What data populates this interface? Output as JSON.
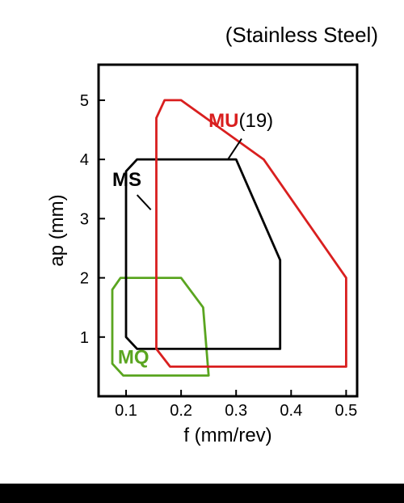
{
  "title": "(Stainless Steel)",
  "chart": {
    "type": "region-outline",
    "xlabel": "f (mm/rev)",
    "ylabel": "ap (mm)",
    "xlim": [
      0.05,
      0.52
    ],
    "ylim": [
      0,
      5.6
    ],
    "xticks": [
      0.1,
      0.2,
      0.3,
      0.4,
      0.5
    ],
    "yticks": [
      1,
      2,
      3,
      4,
      5
    ],
    "label_fontsize": 24,
    "tick_fontsize": 20,
    "background_color": "#ffffff",
    "frame_color": "#000000",
    "frame_linewidth": 3,
    "tick_length": 8,
    "series": [
      {
        "key": "MU",
        "label": "MU",
        "footnote": "(19)",
        "color": "#d91f1f",
        "linewidth": 2.8,
        "points": [
          [
            0.17,
            5.0
          ],
          [
            0.2,
            5.0
          ],
          [
            0.35,
            4.0
          ],
          [
            0.5,
            2.0
          ],
          [
            0.5,
            0.5
          ],
          [
            0.18,
            0.5
          ],
          [
            0.155,
            0.8
          ],
          [
            0.155,
            4.7
          ],
          [
            0.17,
            5.0
          ]
        ],
        "label_pos": [
          0.25,
          4.55
        ],
        "leader": {
          "from": [
            0.31,
            4.35
          ],
          "to": [
            0.285,
            4.0
          ]
        }
      },
      {
        "key": "MS",
        "label": "MS",
        "color": "#000000",
        "linewidth": 2.8,
        "points": [
          [
            0.12,
            4.0
          ],
          [
            0.3,
            4.0
          ],
          [
            0.38,
            2.3
          ],
          [
            0.38,
            0.8
          ],
          [
            0.12,
            0.8
          ],
          [
            0.1,
            1.0
          ],
          [
            0.1,
            3.8
          ],
          [
            0.12,
            4.0
          ]
        ],
        "label_pos": [
          0.075,
          3.55
        ],
        "leader": {
          "from": [
            0.12,
            3.4
          ],
          "to": [
            0.145,
            3.15
          ]
        }
      },
      {
        "key": "MQ",
        "label": "MQ",
        "color": "#5aa520",
        "linewidth": 2.8,
        "points": [
          [
            0.09,
            2.0
          ],
          [
            0.2,
            2.0
          ],
          [
            0.24,
            1.5
          ],
          [
            0.25,
            0.35
          ],
          [
            0.095,
            0.35
          ],
          [
            0.075,
            0.55
          ],
          [
            0.075,
            1.8
          ],
          [
            0.09,
            2.0
          ]
        ],
        "label_pos": [
          0.085,
          0.55
        ]
      }
    ]
  }
}
